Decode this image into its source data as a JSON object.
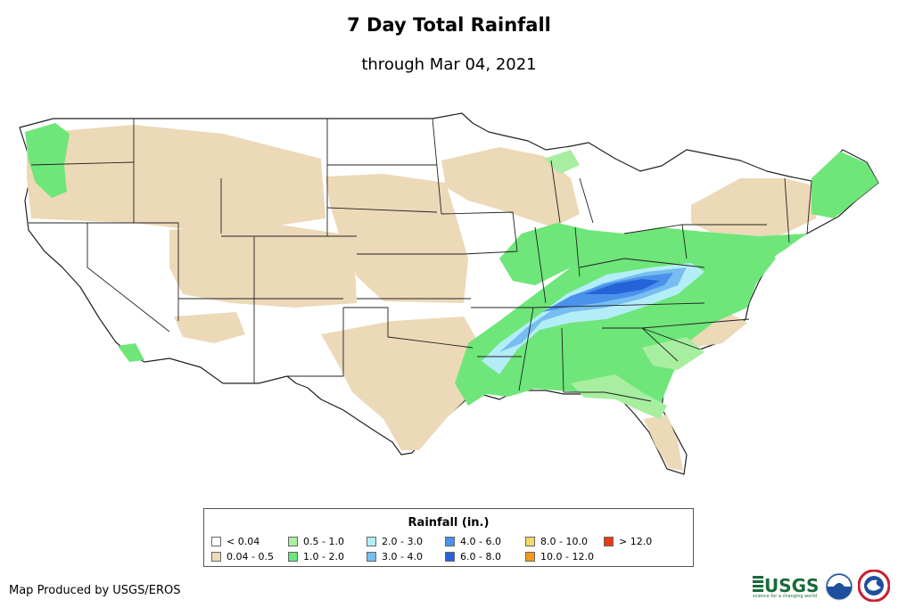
{
  "header": {
    "title": "7 Day Total Rainfall",
    "subtitle": "through Mar 04, 2021"
  },
  "legend": {
    "title": "Rainfall (in.)",
    "items": [
      {
        "label": "< 0.04",
        "color": "#ffffff"
      },
      {
        "label": "0.04 - 0.5",
        "color": "#ecd9b8"
      },
      {
        "label": "0.5 - 1.0",
        "color": "#a8eea0"
      },
      {
        "label": "1.0 - 2.0",
        "color": "#6ee67a"
      },
      {
        "label": "2.0 - 3.0",
        "color": "#b3eef8"
      },
      {
        "label": "3.0 - 4.0",
        "color": "#77bdf0"
      },
      {
        "label": "4.0 - 6.0",
        "color": "#4a92ec"
      },
      {
        "label": "6.0 - 8.0",
        "color": "#2563d8"
      },
      {
        "label": "8.0 - 10.0",
        "color": "#f6d86a"
      },
      {
        "label": "10.0 - 12.0",
        "color": "#f49a1c"
      },
      {
        "label": "> 12.0",
        "color": "#e83a14"
      }
    ]
  },
  "footer": {
    "producer": "Map Produced by USGS/EROS"
  },
  "logos": {
    "usgs_text": "USGS",
    "usgs_tagline": "science for a changing world"
  }
}
